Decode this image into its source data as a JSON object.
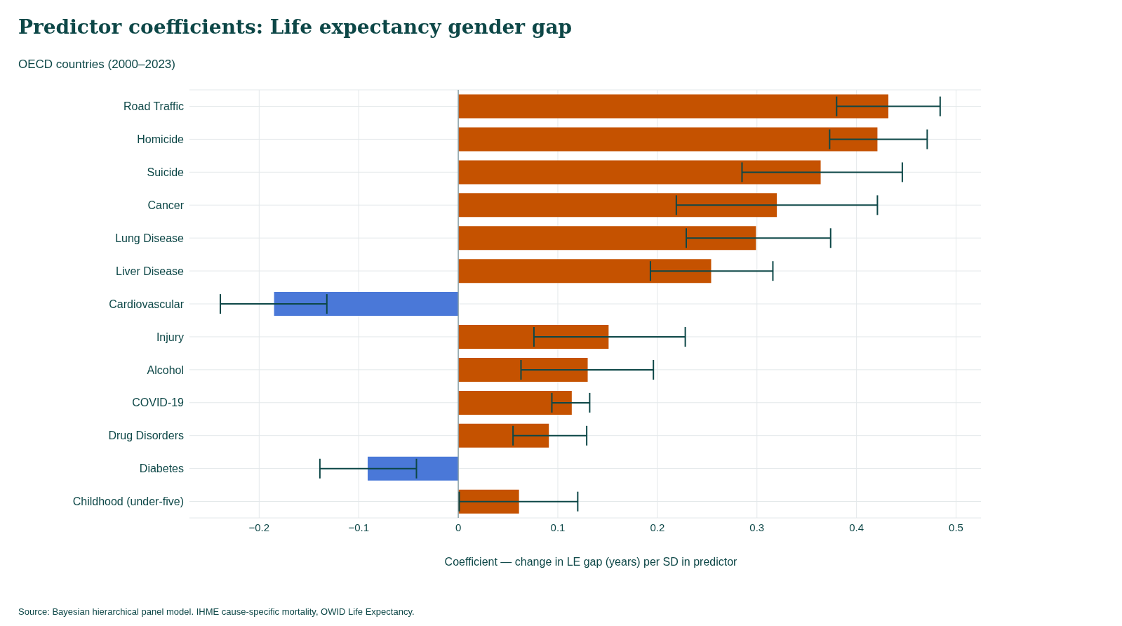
{
  "chart_data": {
    "type": "bar",
    "orientation": "horizontal",
    "title": "Predictor coefficients: Life expectancy gender gap",
    "subtitle": "OECD countries (2000–2023)",
    "xlabel": "Coefficient — change in LE gap (years) per SD in predictor",
    "annotations": [
      "Source: Bayesian hierarchical panel model. IHME cause-specific mortality, OWID Life Expectancy."
    ],
    "categories": [
      "Road Traffic",
      "Homicide",
      "Suicide",
      "Cancer",
      "Lung Disease",
      "Liver Disease",
      "Cardiovascular",
      "Injury",
      "Alcohol",
      "COVID-19",
      "Drug Disorders",
      "Diabetes",
      "Childhood (under-five)"
    ],
    "values": [
      0.432,
      0.421,
      0.364,
      0.32,
      0.299,
      0.254,
      -0.185,
      0.151,
      0.13,
      0.114,
      0.091,
      -0.091,
      0.061
    ],
    "errors": [
      [
        0.38,
        0.484
      ],
      [
        0.373,
        0.471
      ],
      [
        0.285,
        0.446
      ],
      [
        0.219,
        0.421
      ],
      [
        0.229,
        0.374
      ],
      [
        0.193,
        0.316
      ],
      [
        -0.239,
        -0.132
      ],
      [
        0.076,
        0.228
      ],
      [
        0.063,
        0.196
      ],
      [
        0.094,
        0.132
      ],
      [
        0.055,
        0.129
      ],
      [
        -0.139,
        -0.042
      ],
      [
        0.001,
        0.12
      ]
    ],
    "colors": [
      "#c55200",
      "#c55200",
      "#c55200",
      "#c55200",
      "#c55200",
      "#c55200",
      "#4a78d8",
      "#c55200",
      "#c55200",
      "#c55200",
      "#c55200",
      "#4a78d8",
      "#c55200"
    ],
    "xlim": [
      -0.27,
      0.525
    ],
    "xticks": [
      {
        "value": -0.2,
        "label": "−0.2"
      },
      {
        "value": -0.1,
        "label": "−0.1"
      },
      0,
      0.1,
      0.2,
      0.3,
      0.4,
      0.5
    ],
    "ref_lines": [
      {
        "axis": "x",
        "value": 0,
        "color": "#8aa0a8"
      }
    ],
    "grid": true
  }
}
